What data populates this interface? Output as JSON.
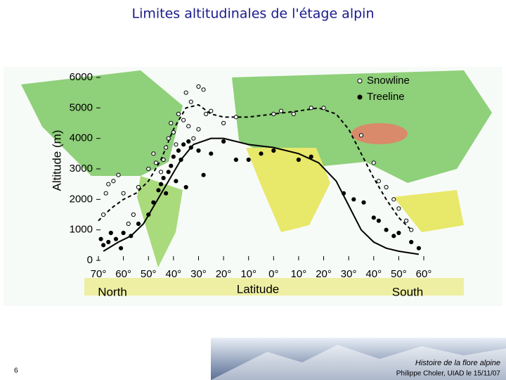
{
  "title": "Limites altitudinales de l'étage alpin",
  "chart_data": {
    "type": "scatter",
    "y_label": "Altitude (m)",
    "x_label": "Latitude",
    "x_annotations": [
      "North",
      "South"
    ],
    "xlim": [
      70,
      -60
    ],
    "ylim": [
      0,
      6000
    ],
    "xticks": [
      {
        "value": 70,
        "label": "70°"
      },
      {
        "value": 60,
        "label": "60°"
      },
      {
        "value": 50,
        "label": "50°"
      },
      {
        "value": 40,
        "label": "40°"
      },
      {
        "value": 30,
        "label": "30°"
      },
      {
        "value": 20,
        "label": "20°"
      },
      {
        "value": 10,
        "label": "10°"
      },
      {
        "value": 0,
        "label": "0°"
      },
      {
        "value": -10,
        "label": "10°"
      },
      {
        "value": -20,
        "label": "20°"
      },
      {
        "value": -30,
        "label": "30°"
      },
      {
        "value": -40,
        "label": "40°"
      },
      {
        "value": -50,
        "label": "50°"
      },
      {
        "value": -60,
        "label": "60°"
      }
    ],
    "yticks": [
      0,
      1000,
      2000,
      3000,
      4000,
      5000,
      6000
    ],
    "legend": "top-right",
    "series": [
      {
        "name": "Snowline",
        "color": "#000000",
        "marker": "open",
        "x": [
          68,
          67,
          66,
          64,
          62,
          60,
          58,
          56,
          54,
          50,
          48,
          47,
          45,
          44,
          43,
          42,
          41,
          40,
          39,
          38,
          36,
          35,
          34,
          33,
          32,
          30,
          30,
          28,
          27,
          25,
          20,
          15,
          0,
          -3,
          -8,
          -15,
          -20,
          -35,
          -40,
          -42,
          -45,
          -48,
          -50,
          -53,
          -55
        ],
        "values": [
          1500,
          2200,
          2500,
          2600,
          2800,
          2200,
          1200,
          1500,
          2400,
          3000,
          3500,
          3200,
          2900,
          3300,
          3700,
          4000,
          4500,
          4200,
          3800,
          4800,
          4600,
          5500,
          4400,
          5200,
          4000,
          4300,
          5700,
          5600,
          4800,
          4900,
          4500,
          4700,
          4800,
          4900,
          4800,
          5000,
          5000,
          4100,
          3200,
          2600,
          2400,
          2000,
          1700,
          1300,
          1000
        ],
        "curve": {
          "dash": true,
          "x": [
            70,
            65,
            60,
            55,
            50,
            45,
            40,
            35,
            30,
            25,
            20,
            10,
            0,
            -10,
            -18,
            -25,
            -30,
            -35,
            -40,
            -45,
            -50,
            -55
          ],
          "values": [
            1300,
            1700,
            2000,
            2200,
            2600,
            3300,
            4300,
            5000,
            5100,
            4800,
            4700,
            4700,
            4800,
            4900,
            5000,
            4800,
            4300,
            3500,
            2700,
            2000,
            1400,
            1000
          ]
        }
      },
      {
        "name": "Treeline",
        "color": "#000000",
        "marker": "filled",
        "x": [
          69,
          68,
          66,
          65,
          63,
          61,
          60,
          57,
          54,
          50,
          48,
          46,
          45,
          44,
          43,
          42,
          41,
          40,
          39,
          38,
          37,
          36,
          35,
          34,
          33,
          30,
          28,
          25,
          20,
          15,
          10,
          5,
          0,
          -10,
          -15,
          -28,
          -32,
          -36,
          -40,
          -42,
          -45,
          -48,
          -50,
          -55,
          -58
        ],
        "values": [
          700,
          500,
          600,
          900,
          700,
          400,
          900,
          800,
          1200,
          1500,
          1900,
          2300,
          2500,
          2700,
          2200,
          2900,
          3100,
          3400,
          2600,
          3600,
          3300,
          3800,
          2400,
          3900,
          3700,
          3600,
          2800,
          3500,
          3900,
          3300,
          3300,
          3500,
          3600,
          3300,
          3400,
          2200,
          2000,
          1900,
          1400,
          1300,
          1000,
          800,
          900,
          600,
          400
        ],
        "curve": {
          "dash": false,
          "x": [
            68,
            62,
            57,
            52,
            47,
            42,
            37,
            32,
            25,
            20,
            10,
            0,
            -10,
            -18,
            -25,
            -30,
            -35,
            -40,
            -45,
            -50,
            -58
          ],
          "values": [
            300,
            600,
            800,
            1200,
            1900,
            2600,
            3300,
            3800,
            4000,
            4000,
            3800,
            3700,
            3500,
            3200,
            2600,
            1800,
            1000,
            600,
            400,
            300,
            200
          ]
        }
      }
    ]
  },
  "footer": {
    "page": "6",
    "course": "Histoire de la flore alpine",
    "author": "Philippe Choler, UIAD le 15/11/07"
  }
}
